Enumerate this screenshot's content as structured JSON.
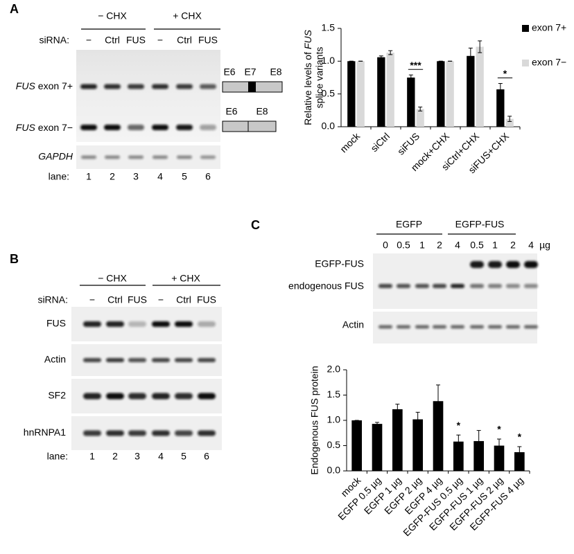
{
  "panel_labels": [
    "A",
    "B",
    "C"
  ],
  "panel_a": {
    "treatments": [
      "− CHX",
      "+ CHX"
    ],
    "sirna_label": "siRNA:",
    "sirna": [
      "−",
      "Ctrl",
      "FUS",
      "−",
      "Ctrl",
      "FUS"
    ],
    "rows": [
      {
        "gene": "FUS",
        "rest": "exon 7+"
      },
      {
        "gene": "FUS",
        "rest": "exon 7−"
      },
      {
        "gene": "GAPDH"
      }
    ],
    "lane_label": "lane:",
    "lanes": [
      1,
      2,
      3,
      4,
      5,
      6
    ],
    "exon7plus": [
      "E6",
      "E7",
      "E8"
    ],
    "exon7minus": [
      "E6",
      "E8"
    ]
  },
  "panel_b": {
    "treatments": [
      "− CHX",
      "+ CHX"
    ],
    "sirna_label": "siRNA:",
    "sirna": [
      "−",
      "Ctrl",
      "FUS",
      "−",
      "Ctrl",
      "FUS"
    ],
    "rows": [
      "FUS",
      "Actin",
      "SF2",
      "hnRNPA1"
    ],
    "lane_label": "lane:",
    "lanes": [
      1,
      2,
      3,
      4,
      5,
      6
    ]
  },
  "panel_c": {
    "groups": [
      "EGFP",
      "EGFP-FUS"
    ],
    "doses": [
      0,
      0.5,
      1,
      2,
      4,
      0.5,
      1,
      2,
      4
    ],
    "unit": "µg",
    "rows": [
      "EGFP-FUS",
      "endogenous FUS",
      "Actin"
    ]
  },
  "chart_data": [
    {
      "type": "bar",
      "y_label": {
        "line1": "Relative levels of",
        "gene": "FUS",
        "line2": "splice variants"
      },
      "categories": [
        "mock",
        "siCtrl",
        "siFUS",
        "mock+CHX",
        "siCtrl+CHX",
        "siFUS+CHX"
      ],
      "series": [
        {
          "name": "exon 7+",
          "color": "#000000",
          "values": [
            1.0,
            1.06,
            0.75,
            1.0,
            1.08,
            0.57
          ],
          "errors": [
            0,
            0.02,
            0.04,
            0,
            0.12,
            0.09
          ]
        },
        {
          "name": "exon 7−",
          "color": "#d9d9d9",
          "values": [
            1.0,
            1.13,
            0.27,
            1.0,
            1.22,
            0.12
          ],
          "errors": [
            0,
            0.03,
            0.03,
            0,
            0.09,
            0.04
          ]
        }
      ],
      "ylim": [
        0,
        1.5
      ],
      "yticks": [
        {
          "value": 0,
          "label": "0.0"
        },
        {
          "value": 0.5,
          "label": "0.5"
        },
        {
          "value": 1,
          "label": "1.0"
        },
        {
          "value": 1.5,
          "label": "1.5"
        }
      ],
      "annotations": [
        {
          "text": "***",
          "index": 2
        },
        {
          "text": "*",
          "index": 5
        }
      ],
      "legend": "right"
    },
    {
      "type": "bar",
      "y_label": {
        "line1": "Endogenous FUS protein"
      },
      "categories": [
        "mock",
        "EGFP 0.5 µg",
        "EGFP 1 µg",
        "EGFP 2 µg",
        "EGFP 4 µg",
        "EGFP-FUS 0.5 µg",
        "EGFP-FUS 1 µg",
        "EGFP-FUS 2 µg",
        "EGFP-FUS 4 µg"
      ],
      "series": [
        {
          "name": "Endogenous FUS",
          "color": "#000000",
          "values": [
            1.0,
            0.93,
            1.22,
            1.02,
            1.38,
            0.58,
            0.59,
            0.5,
            0.37
          ],
          "errors": [
            0,
            0.03,
            0.1,
            0.14,
            0.32,
            0.13,
            0.21,
            0.13,
            0.11
          ]
        }
      ],
      "ylim": [
        0,
        2
      ],
      "yticks": [
        {
          "value": 0,
          "label": "0.0"
        },
        {
          "value": 0.5,
          "label": "0.5"
        },
        {
          "value": 1,
          "label": "1.0"
        },
        {
          "value": 1.5,
          "label": "1.5"
        },
        {
          "value": 2,
          "label": "2.0"
        }
      ],
      "annotations": [
        {
          "text": "*",
          "index": 5
        },
        {
          "text": "*",
          "index": 7
        },
        {
          "text": "*",
          "index": 8
        }
      ]
    }
  ]
}
